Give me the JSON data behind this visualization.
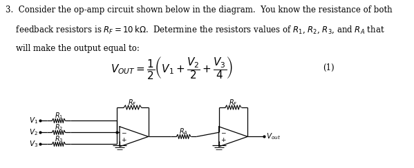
{
  "background_color": "#ffffff",
  "text_color": "#000000",
  "figure_width": 5.99,
  "figure_height": 2.44,
  "dpi": 100,
  "para_line1": "3.  Consider the op-amp circuit shown below in the diagram.  You know the resistance of both",
  "para_line2": "    feedback resistors is $R_F = 10\\,\\mathrm{k}\\Omega$.  Determine the resistors values of $R_1$, $R_2$, $R_3$, and $R_A$ that",
  "para_line3": "    will make the output equal to:",
  "equation": "$V_{OUT} = \\dfrac{1}{2}\\left(V_1 + \\dfrac{V_2}{2} + \\dfrac{V_3}{4}\\right)$",
  "eq_number": "(1)",
  "fs_para": 8.5,
  "fs_eq": 11,
  "fs_small": 7,
  "fs_label": 7.5
}
